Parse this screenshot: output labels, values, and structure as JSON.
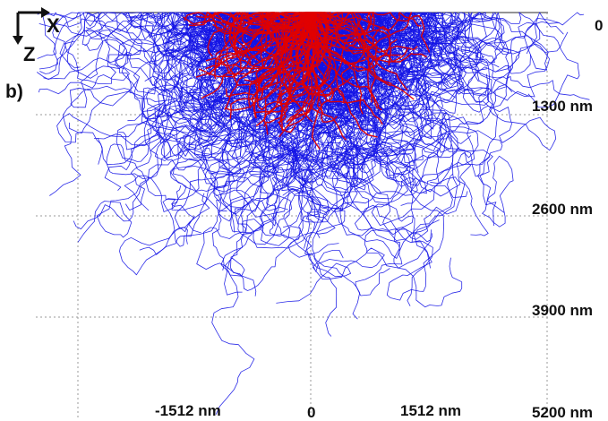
{
  "panel_label": "b)",
  "axes_indicator": {
    "x_label": "X",
    "z_label": "Z"
  },
  "depth_ticks": [
    "0",
    "1300 nm",
    "2600 nm",
    "3900 nm",
    "5200 nm"
  ],
  "lateral_ticks": [
    "-1512 nm",
    "0",
    "1512 nm"
  ],
  "colors": {
    "primary_trajectories": "#e00000",
    "secondary_trajectories": "#1414e6",
    "grid": "#9a9a9a"
  },
  "chart_data": {
    "type": "scatter",
    "description_kind": "electron trajectory simulation (depth vs lateral position)",
    "x_axis": {
      "ticks": [
        -1512,
        0,
        1512
      ],
      "unit": "nm"
    },
    "z_axis": {
      "ticks": [
        0,
        1300,
        2600,
        3900,
        5200
      ],
      "unit": "nm",
      "direction": "down"
    },
    "series": [
      {
        "color": "#e00000",
        "max_depth_nm": 1700,
        "lateral_extent_nm": [
          -2100,
          1800
        ]
      },
      {
        "color": "#1414e6",
        "max_depth_nm": 5200,
        "lateral_extent_nm": [
          -2600,
          2400
        ]
      }
    ]
  }
}
